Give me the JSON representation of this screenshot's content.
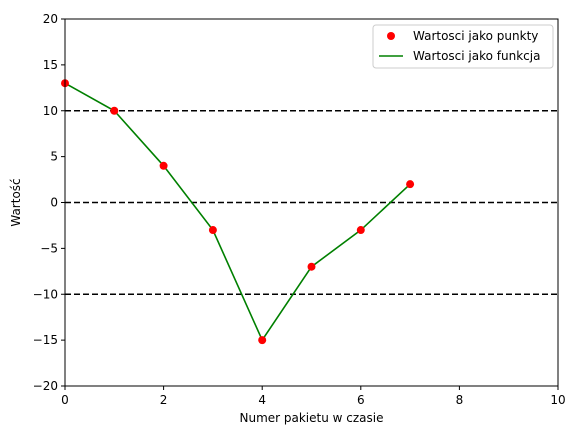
{
  "chart_data": {
    "type": "line",
    "title": "",
    "xlabel": "Numer pakietu w czasie",
    "ylabel": "Wartość",
    "xlim": [
      0,
      10
    ],
    "ylim": [
      -20,
      20
    ],
    "x_ticks": [
      0,
      2,
      4,
      6,
      8,
      10
    ],
    "y_ticks": [
      -20,
      -15,
      -10,
      -5,
      0,
      5,
      10,
      15,
      20
    ],
    "x_tick_labels": [
      "0",
      "2",
      "4",
      "6",
      "8",
      "10"
    ],
    "y_tick_labels": [
      "−20",
      "−15",
      "−10",
      "−5",
      "0",
      "5",
      "10",
      "15",
      "20"
    ],
    "grid": false,
    "legend_position": "top-right",
    "x": [
      0,
      1,
      2,
      3,
      4,
      5,
      6,
      7
    ],
    "series": [
      {
        "name": "Wartosci jako punkty",
        "kind": "scatter",
        "color": "#ff0000",
        "values": [
          13,
          10,
          4,
          -3,
          -15,
          -7,
          -3,
          2
        ]
      },
      {
        "name": "Wartosci jako funkcja",
        "kind": "line",
        "color": "#008000",
        "values": [
          13,
          10,
          4,
          -3,
          -15,
          -7,
          -3,
          2
        ]
      }
    ],
    "reference_lines": [
      {
        "y": 10,
        "style": "dashed",
        "color": "#000000"
      },
      {
        "y": 0,
        "style": "dashed",
        "color": "#000000"
      },
      {
        "y": -10,
        "style": "dashed",
        "color": "#000000"
      }
    ]
  }
}
